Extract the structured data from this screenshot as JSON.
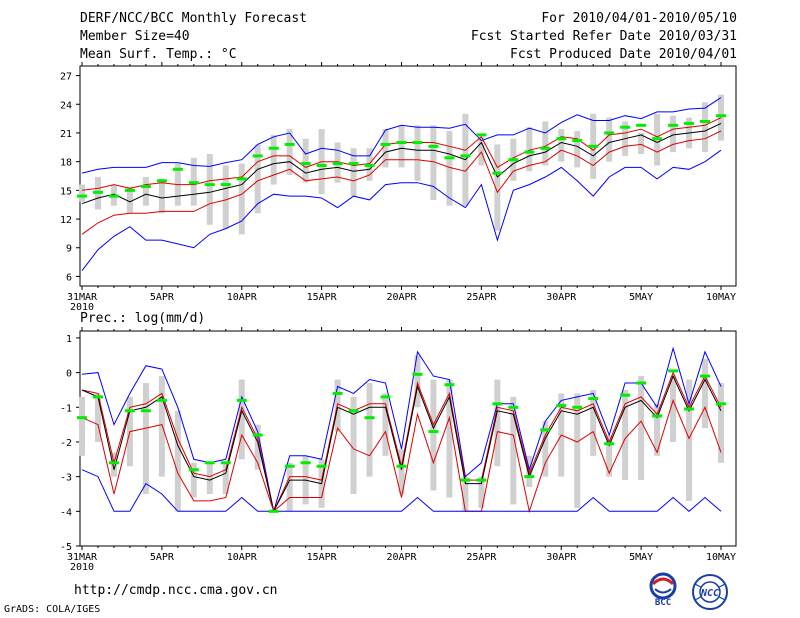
{
  "header": {
    "title": "DERF/NCC/BCC Monthly Forecast",
    "member_size": "Member Size=40",
    "variable": "Mean Surf. Temp.: °C",
    "period": "For 2010/04/01-2010/05/10",
    "started": "Fcst Started Refer Date 2010/03/31",
    "produced": "Fcst Produced Date 2010/04/01"
  },
  "footer": {
    "url": "http://cmdp.ncc.cma.gov.cn",
    "credit": "GrADS: COLA/IGES",
    "logo_left": "BCC",
    "logo_right": "NCC"
  },
  "colors": {
    "envelope": "#0000ff",
    "spread": "#dd0000",
    "mean": "#000000",
    "box": "#d0d0d0",
    "observed": "#00ee00"
  },
  "chart_data": [
    {
      "type": "line",
      "title": "Mean Surf. Temp.: °C",
      "x_labels": [
        "31MAR\n2010",
        "5APR",
        "10APR",
        "15APR",
        "20APR",
        "25APR",
        "30APR",
        "5MAY",
        "10MAY"
      ],
      "x_label_days": [
        0,
        5,
        10,
        15,
        20,
        25,
        30,
        35,
        40
      ],
      "xlim": [
        0,
        40
      ],
      "ylim": [
        5,
        28
      ],
      "yticks": [
        6,
        9,
        12,
        15,
        18,
        21,
        24,
        27
      ],
      "series": [
        {
          "name": "max",
          "color": "#0000ff",
          "values": [
            16.8,
            17.2,
            17.4,
            17.4,
            17.4,
            17.9,
            17.9,
            17.6,
            17.5,
            17.9,
            18.2,
            19.8,
            20.6,
            21.0,
            18.8,
            19.4,
            19.2,
            18.6,
            18.6,
            21.3,
            21.8,
            21.6,
            21.6,
            21.5,
            21.9,
            20.2,
            20.8,
            20.8,
            21.5,
            21.0,
            22.1,
            22.9,
            22.3,
            22.3,
            22.8,
            22.5,
            23.2,
            23.2,
            23.5,
            23.6,
            24.7
          ]
        },
        {
          "name": "upper",
          "color": "#dd0000",
          "values": [
            15.0,
            15.2,
            15.6,
            15.2,
            15.6,
            15.8,
            15.6,
            15.6,
            16.0,
            16.2,
            16.4,
            18.0,
            18.6,
            18.6,
            17.4,
            18.0,
            18.0,
            17.6,
            17.8,
            19.8,
            20.0,
            20.0,
            20.0,
            19.6,
            19.2,
            20.6,
            17.4,
            18.4,
            19.2,
            19.6,
            20.6,
            20.4,
            19.2,
            20.8,
            21.0,
            21.4,
            20.6,
            21.4,
            21.6,
            21.8,
            22.6
          ]
        },
        {
          "name": "mean",
          "color": "#000000",
          "values": [
            13.6,
            14.2,
            14.6,
            13.8,
            14.6,
            14.2,
            14.4,
            14.6,
            14.8,
            15.2,
            15.6,
            17.2,
            17.8,
            18.0,
            16.8,
            17.2,
            17.4,
            17.0,
            17.2,
            19.0,
            19.4,
            19.2,
            19.2,
            18.8,
            18.2,
            20.0,
            16.4,
            17.8,
            18.6,
            19.0,
            20.0,
            19.6,
            18.6,
            20.0,
            20.4,
            20.8,
            20.0,
            20.8,
            21.0,
            21.2,
            22.0
          ]
        },
        {
          "name": "lower",
          "color": "#dd0000",
          "values": [
            10.4,
            11.6,
            12.4,
            12.6,
            12.6,
            12.8,
            12.8,
            12.8,
            13.6,
            14.0,
            14.6,
            16.0,
            16.6,
            17.2,
            16.0,
            16.2,
            16.4,
            16.0,
            16.6,
            18.2,
            18.2,
            18.2,
            18.0,
            17.4,
            17.0,
            19.0,
            14.8,
            17.0,
            17.6,
            18.0,
            19.2,
            18.6,
            17.6,
            19.0,
            19.6,
            19.8,
            19.0,
            19.8,
            20.2,
            20.4,
            21.2
          ]
        },
        {
          "name": "min",
          "color": "#0000ff",
          "values": [
            6.6,
            8.8,
            10.2,
            11.2,
            9.8,
            9.8,
            9.4,
            9.0,
            10.4,
            11.0,
            11.8,
            13.6,
            14.6,
            14.4,
            14.4,
            14.2,
            13.2,
            14.4,
            14.0,
            15.6,
            15.8,
            15.8,
            15.4,
            14.2,
            13.2,
            15.6,
            9.8,
            15.0,
            15.6,
            16.4,
            17.4,
            16.0,
            14.4,
            16.4,
            17.4,
            17.4,
            16.2,
            17.4,
            17.2,
            18.0,
            19.2
          ]
        }
      ],
      "box_lower": [
        13.8,
        13.0,
        13.4,
        12.6,
        13.4,
        12.6,
        13.4,
        13.4,
        11.4,
        11.0,
        10.4,
        12.6,
        15.6,
        16.6,
        15.8,
        14.6,
        15.8,
        14.4,
        16.0,
        17.4,
        17.4,
        16.0,
        14.0,
        13.4,
        13.4,
        17.6,
        10.8,
        16.0,
        17.0,
        17.6,
        18.0,
        17.4,
        16.2,
        18.0,
        18.6,
        18.8,
        17.6,
        19.0,
        19.4,
        19.0,
        20.2
      ],
      "box_upper": [
        15.6,
        16.4,
        15.6,
        15.4,
        16.4,
        16.2,
        17.8,
        18.4,
        18.8,
        17.6,
        17.8,
        19.8,
        20.8,
        21.4,
        20.4,
        21.4,
        20.0,
        19.4,
        19.4,
        21.4,
        21.8,
        21.8,
        21.8,
        21.2,
        23.0,
        20.6,
        19.8,
        20.4,
        21.6,
        22.2,
        21.4,
        21.2,
        23.0,
        22.6,
        22.2,
        21.0,
        23.0,
        22.8,
        22.6,
        24.2,
        25.0
      ],
      "observed": [
        14.4,
        14.8,
        14.4,
        15.0,
        15.4,
        16.0,
        17.2,
        15.8,
        15.6,
        15.6,
        16.2,
        18.6,
        19.4,
        19.8,
        17.8,
        17.6,
        17.8,
        17.8,
        17.6,
        19.8,
        20.0,
        20.0,
        19.6,
        18.4,
        18.6,
        20.8,
        16.8,
        18.2,
        19.0,
        19.4,
        20.4,
        20.2,
        19.6,
        21.0,
        21.6,
        21.8,
        20.4,
        21.8,
        22.0,
        22.2,
        22.8
      ]
    },
    {
      "type": "line",
      "title": "Prec.: log(mm/d)",
      "x_labels": [
        "31MAR\n2010",
        "5APR",
        "10APR",
        "15APR",
        "20APR",
        "25APR",
        "30APR",
        "5MAY",
        "10MAY"
      ],
      "x_label_days": [
        0,
        5,
        10,
        15,
        20,
        25,
        30,
        35,
        40
      ],
      "xlim": [
        0,
        40
      ],
      "ylim": [
        -5,
        1.2
      ],
      "yticks": [
        -5,
        -4,
        -3,
        -2,
        -1,
        0,
        1
      ],
      "series": [
        {
          "name": "max",
          "color": "#0000ff",
          "values": [
            -0.05,
            0.0,
            -1.5,
            -0.6,
            0.2,
            0.1,
            -1.0,
            -2.5,
            -2.6,
            -2.5,
            -0.7,
            -1.7,
            -4.0,
            -2.4,
            -2.4,
            -2.5,
            -0.4,
            -0.6,
            -0.2,
            -0.3,
            -2.2,
            0.6,
            -0.1,
            -0.2,
            -3.0,
            -2.6,
            -0.9,
            -0.9,
            -2.8,
            -1.4,
            -0.8,
            -0.7,
            -0.6,
            -1.8,
            -0.3,
            -0.3,
            -1.0,
            0.7,
            -0.9,
            0.6,
            -0.4
          ]
        },
        {
          "name": "upper",
          "color": "#dd0000",
          "values": [
            -0.5,
            -0.6,
            -2.6,
            -1.0,
            -0.9,
            -0.6,
            -1.9,
            -2.9,
            -3.0,
            -2.8,
            -1.0,
            -1.9,
            -4.0,
            -3.0,
            -3.0,
            -3.1,
            -0.9,
            -1.1,
            -0.9,
            -0.9,
            -2.7,
            -0.3,
            -1.5,
            -0.6,
            -3.1,
            -3.1,
            -1.0,
            -1.1,
            -2.9,
            -1.8,
            -1.0,
            -1.1,
            -0.9,
            -2.0,
            -0.9,
            -0.7,
            -1.2,
            0.0,
            -1.0,
            -0.1,
            -1.0
          ]
        },
        {
          "name": "mean",
          "color": "#000000",
          "values": [
            -0.5,
            -0.7,
            -2.8,
            -1.1,
            -1.0,
            -0.7,
            -2.1,
            -3.0,
            -3.1,
            -2.9,
            -1.1,
            -2.0,
            -4.0,
            -3.1,
            -3.1,
            -3.2,
            -1.0,
            -1.2,
            -1.0,
            -1.0,
            -2.8,
            -0.4,
            -1.6,
            -0.7,
            -3.2,
            -3.2,
            -1.1,
            -1.2,
            -3.0,
            -1.9,
            -1.1,
            -1.2,
            -1.0,
            -2.1,
            -1.0,
            -0.8,
            -1.3,
            -0.1,
            -1.1,
            -0.2,
            -1.1
          ]
        },
        {
          "name": "lower",
          "color": "#dd0000",
          "values": [
            -1.3,
            -1.5,
            -3.5,
            -1.7,
            -1.6,
            -1.5,
            -2.9,
            -3.7,
            -3.7,
            -3.6,
            -1.8,
            -2.6,
            -4.0,
            -3.6,
            -3.6,
            -3.6,
            -1.6,
            -2.2,
            -2.4,
            -1.7,
            -3.6,
            -1.2,
            -2.6,
            -1.3,
            -4.0,
            -4.0,
            -1.7,
            -1.8,
            -4.0,
            -2.6,
            -1.8,
            -2.0,
            -1.7,
            -2.9,
            -1.9,
            -1.4,
            -2.3,
            -0.8,
            -1.9,
            -1.0,
            -2.3
          ]
        },
        {
          "name": "min",
          "color": "#0000ff",
          "values": [
            -2.8,
            -3.0,
            -4.0,
            -4.0,
            -3.2,
            -3.5,
            -4.0,
            -4.0,
            -4.0,
            -4.0,
            -3.6,
            -4.0,
            -4.0,
            -4.0,
            -4.0,
            -4.0,
            -4.0,
            -4.0,
            -4.0,
            -4.0,
            -4.0,
            -3.6,
            -4.0,
            -4.0,
            -4.0,
            -4.0,
            -4.0,
            -4.0,
            -4.0,
            -4.0,
            -4.0,
            -4.0,
            -3.6,
            -4.0,
            -4.0,
            -4.0,
            -4.0,
            -3.6,
            -4.0,
            -3.6,
            -4.0
          ]
        }
      ],
      "box_lower": [
        -2.4,
        -2.0,
        -3.0,
        -2.7,
        -3.5,
        -3.0,
        -4.0,
        -3.6,
        -3.5,
        -3.5,
        -2.5,
        -2.8,
        -4.0,
        -4.0,
        -3.8,
        -3.9,
        -1.7,
        -3.5,
        -3.0,
        -2.4,
        -3.5,
        -1.0,
        -3.4,
        -3.6,
        -4.0,
        -3.9,
        -2.7,
        -3.8,
        -3.3,
        -3.0,
        -3.0,
        -3.9,
        -2.4,
        -3.0,
        -3.1,
        -3.1,
        -2.4,
        -2.0,
        -3.7,
        -1.6,
        -2.6
      ],
      "box_upper": [
        -0.7,
        -0.6,
        -2.3,
        -0.7,
        -0.3,
        -0.1,
        -1.1,
        -2.6,
        -2.6,
        -2.6,
        -0.2,
        -1.5,
        -4.0,
        -2.6,
        -2.4,
        -2.5,
        -0.2,
        -0.7,
        -0.3,
        -0.6,
        -2.2,
        0.5,
        -0.2,
        -0.2,
        -3.0,
        -3.0,
        -0.2,
        -0.7,
        -2.4,
        -1.4,
        -0.6,
        -0.6,
        -0.5,
        -1.8,
        -0.5,
        -0.1,
        -0.9,
        -0.1,
        -0.2,
        0.4,
        -0.3
      ],
      "observed": [
        -1.3,
        -0.7,
        -2.6,
        -1.1,
        -1.1,
        -0.8,
        -2.8,
        -2.6,
        -2.6,
        -0.8,
        -1.8,
        -4.0,
        -2.7,
        -2.6,
        -2.7,
        -0.6,
        -1.1,
        -1.3,
        -0.7,
        -2.7,
        -0.05,
        -1.7,
        -0.35,
        -3.1,
        -3.1,
        -0.9,
        -1.0,
        -3.0,
        -1.65,
        -0.95,
        -1.0,
        -0.75,
        -2.05,
        -0.65,
        -0.3,
        -1.25,
        0.05,
        -1.05,
        -0.1,
        -0.9
      ],
      "observed_days": [
        0,
        1,
        2,
        3,
        4,
        5,
        7,
        8,
        9,
        10,
        11,
        12,
        13,
        14,
        15,
        16,
        17,
        18,
        19,
        20,
        21,
        22,
        23,
        24,
        25,
        26,
        27,
        28,
        29,
        30,
        31,
        32,
        33,
        34,
        35,
        36,
        37,
        38,
        39,
        40
      ]
    }
  ]
}
